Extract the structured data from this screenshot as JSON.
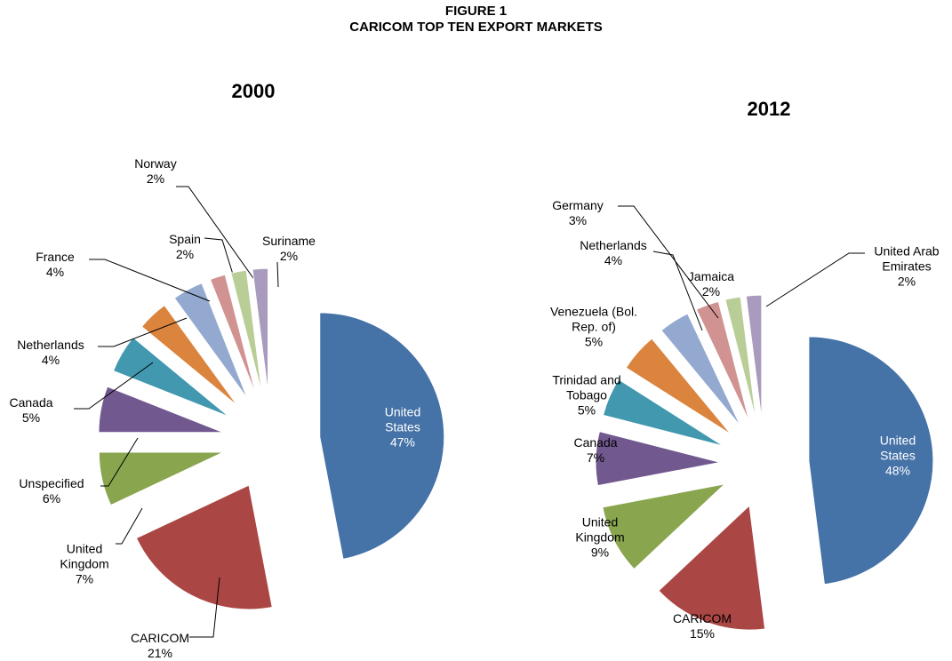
{
  "title": "FIGURE 1",
  "subtitle": "CARICOM TOP TEN EXPORT MARKETS",
  "chart_data": [
    {
      "type": "pie",
      "title": "2000",
      "categories": [
        "United States",
        "CARICOM",
        "United Kingdom",
        "Unspecified",
        "Canada",
        "Netherlands",
        "France",
        "Spain",
        "Norway",
        "Suriname"
      ],
      "values": [
        47,
        21,
        7,
        6,
        5,
        4,
        4,
        2,
        2,
        2
      ],
      "value_labels": [
        "47%",
        "21%",
        "7%",
        "6%",
        "5%",
        "4%",
        "4%",
        "2%",
        "2%",
        "2%"
      ],
      "colors": [
        "#4572a7",
        "#aa4643",
        "#89a54e",
        "#71588f",
        "#4198af",
        "#db843d",
        "#93a9cf",
        "#d19392",
        "#b9cd96",
        "#a99bbd"
      ]
    },
    {
      "type": "pie",
      "title": "2012",
      "categories": [
        "United States",
        "CARICOM",
        "United Kingdom",
        "Canada",
        "Trinidad and Tobago",
        "Venezuela (Bol. Rep. of)",
        "Netherlands",
        "Germany",
        "Jamaica",
        "United Arab Emirates"
      ],
      "values": [
        48,
        15,
        9,
        7,
        5,
        5,
        4,
        3,
        2,
        2
      ],
      "value_labels": [
        "48%",
        "15%",
        "9%",
        "7%",
        "5%",
        "5%",
        "4%",
        "3%",
        "2%",
        "2%"
      ],
      "colors": [
        "#4572a7",
        "#aa4643",
        "#89a54e",
        "#71588f",
        "#4198af",
        "#db843d",
        "#93a9cf",
        "#d19392",
        "#b9cd96",
        "#a99bbd"
      ]
    }
  ]
}
